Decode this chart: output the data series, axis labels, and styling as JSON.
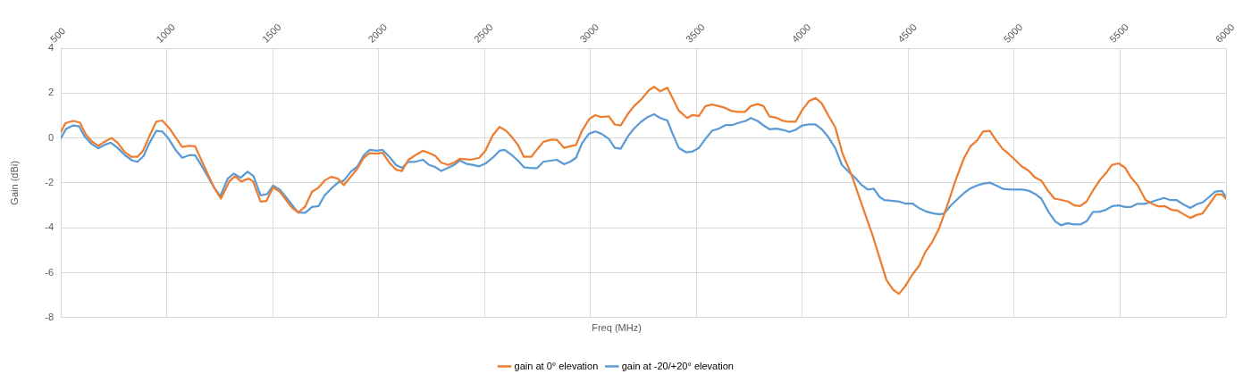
{
  "chart_data": {
    "type": "line",
    "xlabel": "Freq (MHz)",
    "ylabel": "Gain (dBi)",
    "xlim": [
      500,
      6000
    ],
    "xticks": [
      500,
      1000,
      1500,
      2000,
      2500,
      3000,
      3500,
      4000,
      4500,
      5000,
      5500,
      6000
    ],
    "ylim": [
      -8,
      4
    ],
    "yticks": [
      -8,
      -6,
      -4,
      -2,
      0,
      2,
      4
    ],
    "grid": true,
    "legend": "bottom",
    "marker": "none",
    "line_style": "solid",
    "series": [
      {
        "name": "gain at 0° elevation",
        "color": "#ed7d31",
        "x": [
          501,
          522,
          558,
          590,
          618,
          649,
          677,
          705,
          740,
          768,
          803,
          834,
          862,
          888,
          916,
          951,
          979,
          1014,
          1042,
          1073,
          1106,
          1134,
          1169,
          1225,
          1256,
          1295,
          1323,
          1351,
          1387,
          1408,
          1443,
          1471,
          1502,
          1534,
          1562,
          1590,
          1621,
          1654,
          1686,
          1714,
          1745,
          1776,
          1808,
          1836,
          1871,
          1900,
          1930,
          1958,
          1991,
          2019,
          2051,
          2082,
          2110,
          2141,
          2173,
          2209,
          2237,
          2268,
          2296,
          2328,
          2356,
          2384,
          2433,
          2475,
          2504,
          2539,
          2571,
          2602,
          2630,
          2658,
          2686,
          2721,
          2749,
          2778,
          2813,
          2841,
          2876,
          2904,
          2932,
          2960,
          2995,
          3023,
          3052,
          3087,
          3115,
          3143,
          3178,
          3206,
          3241,
          3274,
          3300,
          3330,
          3363,
          3389,
          3417,
          3456,
          3480,
          3512,
          3543,
          3574,
          3607,
          3639,
          3667,
          3698,
          3729,
          3757,
          3789,
          3817,
          3845,
          3881,
          3909,
          3937,
          3968,
          4000,
          4032,
          4063,
          4091,
          4122,
          4155,
          4190,
          4232,
          4288,
          4330,
          4365,
          4397,
          4428,
          4456,
          4485,
          4520,
          4552,
          4580,
          4614,
          4646,
          4681,
          4723,
          4763,
          4794,
          4825,
          4853,
          4885,
          4913,
          4945,
          4973,
          5004,
          5035,
          5068,
          5100,
          5128,
          5159,
          5190,
          5222,
          5254,
          5283,
          5311,
          5342,
          5372,
          5405,
          5433,
          5461,
          5493,
          5524,
          5552,
          5583,
          5620,
          5651,
          5679,
          5710,
          5742,
          5770,
          5798,
          5831,
          5861,
          5889,
          5920,
          5953,
          5981,
          5999
        ],
        "values": [
          0.27,
          0.66,
          0.76,
          0.69,
          0.16,
          -0.17,
          -0.35,
          -0.17,
          0.0,
          -0.21,
          -0.64,
          -0.84,
          -0.84,
          -0.57,
          0.03,
          0.73,
          0.78,
          0.42,
          0.03,
          -0.4,
          -0.35,
          -0.37,
          -1.1,
          -2.23,
          -2.7,
          -1.94,
          -1.7,
          -1.94,
          -1.81,
          -1.94,
          -2.83,
          -2.8,
          -2.2,
          -2.39,
          -2.74,
          -3.09,
          -3.32,
          -3.05,
          -2.39,
          -2.23,
          -1.9,
          -1.73,
          -1.81,
          -2.1,
          -1.7,
          -1.37,
          -0.88,
          -0.68,
          -0.7,
          -0.66,
          -1.1,
          -1.41,
          -1.47,
          -0.97,
          -0.77,
          -0.57,
          -0.66,
          -0.8,
          -1.1,
          -1.2,
          -1.1,
          -0.93,
          -0.97,
          -0.88,
          -0.57,
          0.12,
          0.49,
          0.32,
          0.03,
          -0.31,
          -0.84,
          -0.84,
          -0.5,
          -0.17,
          -0.08,
          -0.08,
          -0.44,
          -0.37,
          -0.31,
          0.32,
          0.85,
          1.02,
          0.93,
          0.96,
          0.6,
          0.56,
          1.09,
          1.42,
          1.73,
          2.11,
          2.28,
          2.08,
          2.24,
          1.75,
          1.22,
          0.89,
          1.02,
          0.98,
          1.42,
          1.49,
          1.42,
          1.33,
          1.2,
          1.16,
          1.16,
          1.42,
          1.51,
          1.42,
          0.96,
          0.89,
          0.76,
          0.72,
          0.72,
          1.25,
          1.65,
          1.78,
          1.55,
          1.02,
          0.49,
          -0.7,
          -1.63,
          -3.16,
          -4.29,
          -5.35,
          -6.32,
          -6.75,
          -6.95,
          -6.61,
          -6.08,
          -5.68,
          -5.09,
          -4.62,
          -4.02,
          -3.09,
          -1.9,
          -0.9,
          -0.37,
          -0.11,
          0.29,
          0.32,
          -0.08,
          -0.48,
          -0.7,
          -0.97,
          -1.26,
          -1.46,
          -1.77,
          -1.9,
          -2.34,
          -2.7,
          -2.76,
          -2.83,
          -3.0,
          -3.03,
          -2.83,
          -2.34,
          -1.87,
          -1.57,
          -1.2,
          -1.13,
          -1.33,
          -1.77,
          -2.1,
          -2.76,
          -2.93,
          -3.05,
          -3.03,
          -3.2,
          -3.23,
          -3.39,
          -3.56,
          -3.43,
          -3.36,
          -2.96,
          -2.52,
          -2.52,
          -2.7
        ]
      },
      {
        "name": "gain at -20/+20° elevation",
        "color": "#5b9bd5",
        "x": [
          501,
          525,
          558,
          586,
          614,
          646,
          677,
          705,
          736,
          768,
          803,
          839,
          862,
          891,
          916,
          951,
          979,
          1007,
          1042,
          1073,
          1106,
          1134,
          1169,
          1225,
          1253,
          1288,
          1316,
          1349,
          1382,
          1410,
          1443,
          1475,
          1502,
          1534,
          1565,
          1597,
          1621,
          1654,
          1686,
          1717,
          1745,
          1776,
          1808,
          1836,
          1869,
          1900,
          1930,
          1958,
          1991,
          2019,
          2051,
          2082,
          2110,
          2141,
          2173,
          2209,
          2239,
          2268,
          2296,
          2328,
          2356,
          2384,
          2412,
          2447,
          2475,
          2504,
          2539,
          2571,
          2595,
          2630,
          2658,
          2686,
          2721,
          2749,
          2778,
          2813,
          2841,
          2876,
          2904,
          2932,
          2960,
          2993,
          3023,
          3052,
          3087,
          3115,
          3143,
          3178,
          3206,
          3239,
          3270,
          3300,
          3330,
          3363,
          3389,
          3417,
          3452,
          3480,
          3512,
          3543,
          3574,
          3607,
          3639,
          3670,
          3705,
          3733,
          3757,
          3789,
          3817,
          3845,
          3878,
          3909,
          3940,
          3968,
          4000,
          4032,
          4061,
          4091,
          4122,
          4155,
          4187,
          4218,
          4249,
          4281,
          4309,
          4337,
          4365,
          4386,
          4421,
          4456,
          4485,
          4520,
          4552,
          4583,
          4618,
          4650,
          4670,
          4702,
          4735,
          4766,
          4796,
          4829,
          4857,
          4885,
          4917,
          4948,
          4979,
          5011,
          5039,
          5072,
          5100,
          5128,
          5162,
          5194,
          5222,
          5250,
          5283,
          5313,
          5344,
          5372,
          5401,
          5433,
          5465,
          5493,
          5524,
          5552,
          5583,
          5616,
          5644,
          5676,
          5707,
          5735,
          5766,
          5798,
          5831,
          5861,
          5889,
          5920,
          5948,
          5981,
          5999
        ],
        "values": [
          0.0,
          0.4,
          0.56,
          0.53,
          0.05,
          -0.27,
          -0.46,
          -0.31,
          -0.21,
          -0.44,
          -0.77,
          -1.01,
          -1.06,
          -0.8,
          -0.27,
          0.32,
          0.29,
          -0.01,
          -0.53,
          -0.88,
          -0.77,
          -0.77,
          -1.3,
          -2.23,
          -2.6,
          -1.81,
          -1.59,
          -1.77,
          -1.5,
          -1.7,
          -2.56,
          -2.5,
          -2.12,
          -2.3,
          -2.66,
          -3.05,
          -3.32,
          -3.33,
          -3.07,
          -3.03,
          -2.56,
          -2.26,
          -1.99,
          -1.9,
          -1.5,
          -1.27,
          -0.77,
          -0.53,
          -0.57,
          -0.53,
          -0.84,
          -1.2,
          -1.33,
          -1.06,
          -1.06,
          -0.97,
          -1.2,
          -1.3,
          -1.47,
          -1.33,
          -1.2,
          -1.0,
          -1.14,
          -1.2,
          -1.26,
          -1.14,
          -0.88,
          -0.57,
          -0.53,
          -0.77,
          -1.01,
          -1.3,
          -1.34,
          -1.34,
          -1.06,
          -1.01,
          -0.97,
          -1.17,
          -1.06,
          -0.88,
          -0.24,
          0.19,
          0.29,
          0.19,
          -0.04,
          -0.44,
          -0.48,
          0.09,
          0.42,
          0.72,
          0.93,
          1.06,
          0.89,
          0.78,
          0.16,
          -0.44,
          -0.64,
          -0.61,
          -0.44,
          -0.04,
          0.32,
          0.42,
          0.58,
          0.58,
          0.69,
          0.76,
          0.89,
          0.76,
          0.56,
          0.39,
          0.42,
          0.36,
          0.27,
          0.36,
          0.56,
          0.61,
          0.61,
          0.4,
          0.05,
          -0.44,
          -1.2,
          -1.5,
          -1.77,
          -2.1,
          -2.3,
          -2.26,
          -2.63,
          -2.76,
          -2.79,
          -2.83,
          -2.92,
          -2.92,
          -3.13,
          -3.27,
          -3.36,
          -3.4,
          -3.36,
          -3.0,
          -2.7,
          -2.43,
          -2.23,
          -2.1,
          -2.03,
          -1.99,
          -2.12,
          -2.27,
          -2.3,
          -2.3,
          -2.3,
          -2.36,
          -2.5,
          -2.7,
          -3.29,
          -3.72,
          -3.89,
          -3.8,
          -3.85,
          -3.85,
          -3.69,
          -3.29,
          -3.29,
          -3.2,
          -3.03,
          -3.0,
          -3.07,
          -3.07,
          -2.93,
          -2.93,
          -2.86,
          -2.76,
          -2.67,
          -2.76,
          -2.76,
          -2.96,
          -3.12,
          -2.96,
          -2.87,
          -2.63,
          -2.39,
          -2.36,
          -2.63
        ]
      }
    ]
  }
}
